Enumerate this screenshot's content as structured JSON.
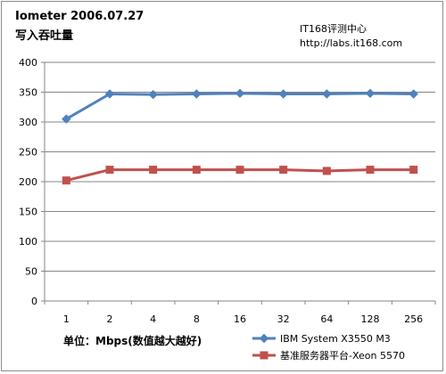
{
  "header": {
    "title_line1": "Iometer 2006.07.27",
    "title_line2": "写入吞吐量",
    "site_line1": "IT168评测中心",
    "site_line2": "http://labs.it168.com"
  },
  "footer": {
    "unit_label": "单位：Mbps(数值越大越好)"
  },
  "chart_data": {
    "type": "line",
    "title": "Iometer 2006.07.27 写入吞吐量",
    "categories": [
      "1",
      "2",
      "4",
      "8",
      "16",
      "32",
      "64",
      "128",
      "256"
    ],
    "ylim": [
      0,
      400
    ],
    "y_ticks": [
      "0",
      "50",
      "100",
      "150",
      "200",
      "250",
      "300",
      "350",
      "400"
    ],
    "grid": true,
    "legend_position": "bottom-right",
    "series": [
      {
        "name": "IBM System X3550 M3",
        "color": "#4f81bd",
        "marker": "diamond",
        "values": [
          305,
          347,
          346,
          347,
          348,
          347,
          347,
          348,
          347
        ]
      },
      {
        "name": "基准服务器平台-Xeon 5570",
        "color": "#c0504d",
        "marker": "square",
        "values": [
          202,
          220,
          220,
          220,
          220,
          220,
          218,
          220,
          220
        ]
      }
    ]
  }
}
